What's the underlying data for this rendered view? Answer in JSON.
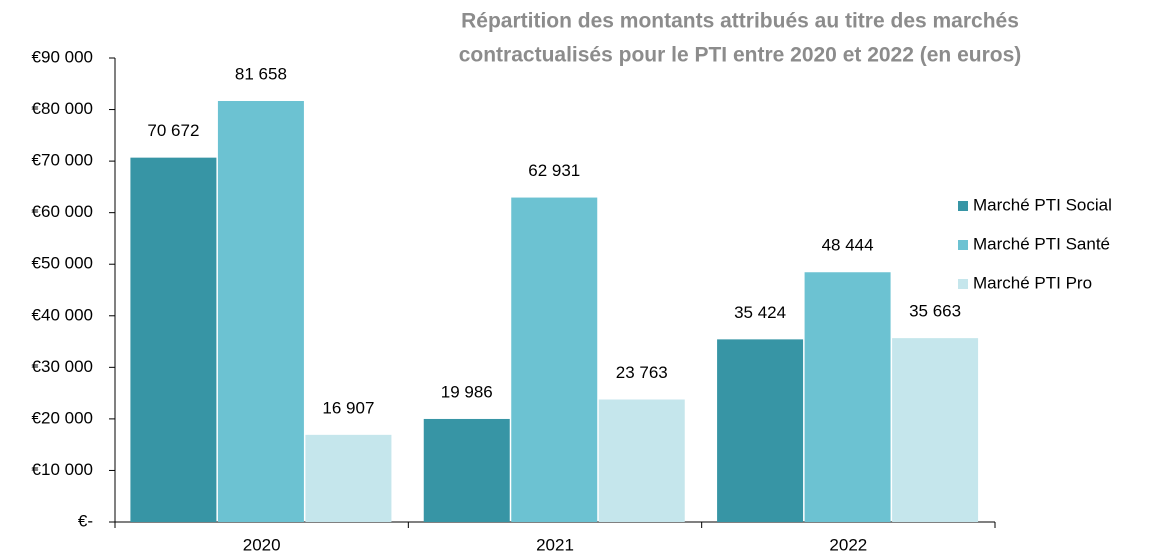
{
  "chart_data": {
    "type": "bar",
    "title": [
      "Répartition des montants attribués au titre des marchés",
      "contractualisés pour le PTI entre 2020 et 2022 (en euros)"
    ],
    "categories": [
      "2020",
      "2021",
      "2022"
    ],
    "series": [
      {
        "name": "Marché PTI Social",
        "color": "#3795a5",
        "values": [
          70672,
          19986,
          35424
        ],
        "value_labels": [
          "70 672",
          "19 986",
          "35 424"
        ]
      },
      {
        "name": "Marché PTI Santé",
        "color": "#6cc2d2",
        "values": [
          81658,
          62931,
          48444
        ],
        "value_labels": [
          "81 658",
          "62 931",
          "48 444"
        ]
      },
      {
        "name": "Marché PTI Pro",
        "color": "#c5e6ec",
        "values": [
          16907,
          23763,
          35663
        ],
        "value_labels": [
          "16 907",
          "23 763",
          "35 663"
        ]
      }
    ],
    "ylim": [
      0,
      90000
    ],
    "yticks": [
      {
        "value": 0,
        "label": "€-"
      },
      {
        "value": 10000,
        "label": "€10 000"
      },
      {
        "value": 20000,
        "label": "€20 000"
      },
      {
        "value": 30000,
        "label": "€30 000"
      },
      {
        "value": 40000,
        "label": "€40 000"
      },
      {
        "value": 50000,
        "label": "€50 000"
      },
      {
        "value": 60000,
        "label": "€60 000"
      },
      {
        "value": 70000,
        "label": "€70 000"
      },
      {
        "value": 80000,
        "label": "€80 000"
      },
      {
        "value": 90000,
        "label": "€90 000"
      }
    ],
    "legend": "right"
  }
}
